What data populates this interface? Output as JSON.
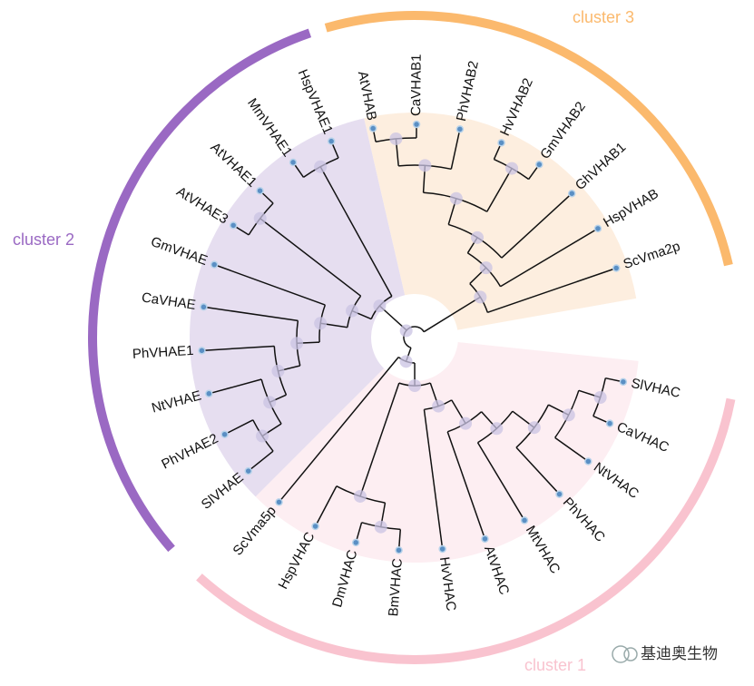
{
  "clusters": [
    {
      "label": "cluster 1",
      "leaves": [
        "SlVHAC",
        "CaVHAC",
        "NtVHAC",
        "PhVHAC",
        "MtVHAC",
        "AtVHAC",
        "HvVHAC",
        "BmVHAC",
        "DmVHAC",
        "HspVHAC",
        "ScVma5p"
      ]
    },
    {
      "label": "cluster 2",
      "leaves": [
        "SlVHAE",
        "PhVHAE2",
        "NtVHAE",
        "PhVHAE1",
        "CaVHAE",
        "GmVHAE",
        "AtVHAE3",
        "AtVHAE1",
        "MmVHAE1",
        "HspVHAE1"
      ]
    },
    {
      "label": "cluster 3",
      "leaves": [
        "AtVHAB",
        "CaVHAB1",
        "PhVHAB2",
        "HvVHAB2",
        "GmVHAB2",
        "GhVHAB1",
        "HspVHAB",
        "ScVma2p"
      ]
    }
  ],
  "watermark": "基迪奥生物"
}
